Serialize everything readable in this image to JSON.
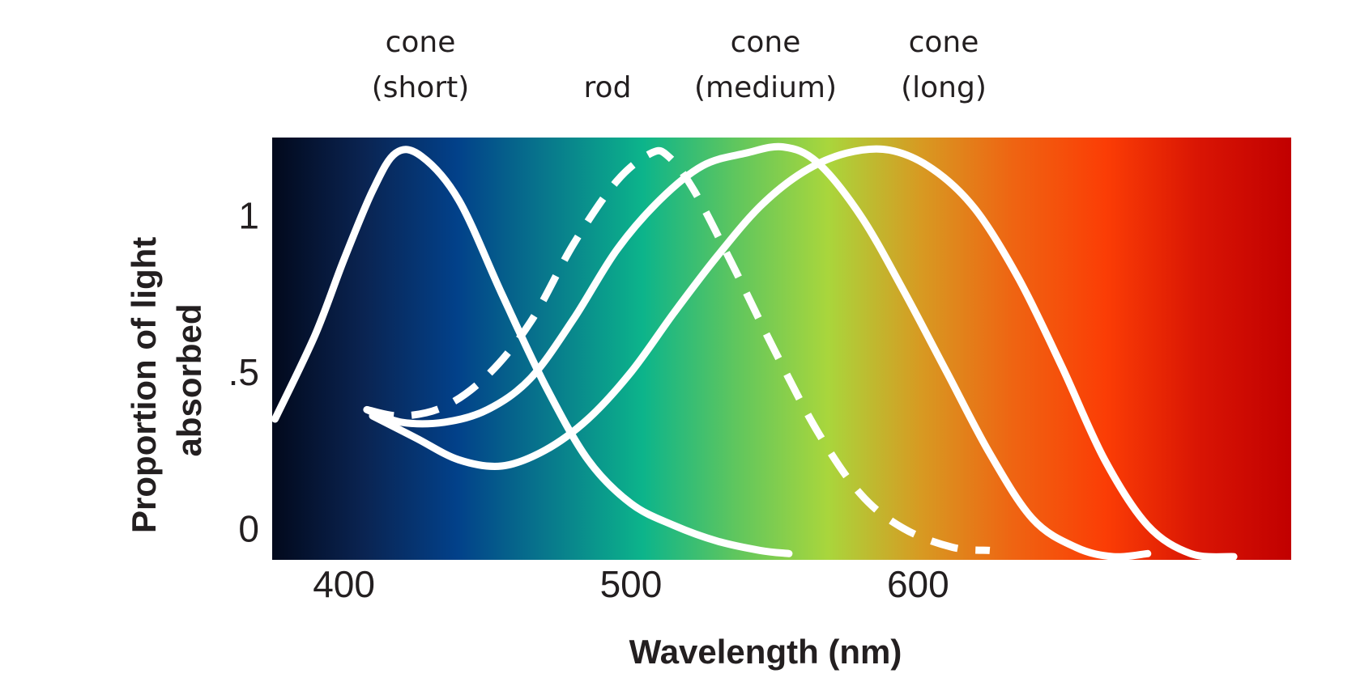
{
  "chart_data": {
    "type": "line",
    "title": "",
    "xlabel": "Wavelength (nm)",
    "ylabel_lines": [
      "Proportion of light",
      "absorbed"
    ],
    "xlim": [
      375,
      730
    ],
    "ylim": [
      -0.1,
      1.25
    ],
    "x_ticks": [
      {
        "value": 400,
        "label": "400"
      },
      {
        "value": 500,
        "label": "500"
      },
      {
        "value": 600,
        "label": "600"
      }
    ],
    "y_ticks": [
      {
        "value": 0,
        "label": "0"
      },
      {
        "value": 0.5,
        "label": ".5"
      },
      {
        "value": 1,
        "label": "1"
      }
    ],
    "grid": false,
    "legend": "none",
    "background": "visible-spectrum gradient",
    "colors": {
      "curve": "#ffffff",
      "text": "#231f20",
      "spectrum": [
        "#02091c",
        "#0a2452",
        "#02418a",
        "#087a8c",
        "#0cb48b",
        "#5fc65e",
        "#a9d63c",
        "#d79a22",
        "#ef6412",
        "#fb3d05",
        "#d91504",
        "#c10000"
      ]
    },
    "series": [
      {
        "label_lines": [
          "cone",
          "(short)"
        ],
        "style": "solid",
        "x": [
          376,
          390,
          400,
          410,
          418,
          427,
          440,
          455,
          470,
          485,
          500,
          515,
          530,
          545,
          555
        ],
        "y": [
          0.35,
          0.62,
          0.86,
          1.08,
          1.2,
          1.19,
          1.05,
          0.75,
          0.46,
          0.22,
          0.08,
          0.01,
          -0.04,
          -0.07,
          -0.08
        ]
      },
      {
        "label_lines": [
          "rod"
        ],
        "style": "dashed",
        "x": [
          408,
          420,
          435,
          450,
          465,
          480,
          495,
          507,
          513,
          522,
          535,
          550,
          565,
          580,
          595,
          612,
          625
        ],
        "y": [
          0.38,
          0.36,
          0.39,
          0.49,
          0.66,
          0.91,
          1.11,
          1.2,
          1.19,
          1.08,
          0.85,
          0.57,
          0.31,
          0.11,
          0.0,
          -0.06,
          -0.07
        ]
      },
      {
        "label_lines": [
          "cone",
          "(medium)"
        ],
        "style": "solid",
        "x": [
          408,
          420,
          435,
          450,
          465,
          480,
          495,
          510,
          525,
          540,
          553,
          565,
          580,
          595,
          610,
          625,
          640,
          655,
          668,
          680
        ],
        "y": [
          0.38,
          0.34,
          0.34,
          0.38,
          0.48,
          0.67,
          0.89,
          1.05,
          1.16,
          1.2,
          1.22,
          1.17,
          1.0,
          0.76,
          0.5,
          0.24,
          0.03,
          -0.06,
          -0.09,
          -0.08
        ]
      },
      {
        "label_lines": [
          "cone",
          "(long)"
        ],
        "style": "solid",
        "x": [
          410,
          425,
          440,
          455,
          470,
          485,
          500,
          515,
          530,
          545,
          560,
          575,
          590,
          605,
          620,
          635,
          650,
          665,
          680,
          695,
          710
        ],
        "y": [
          0.36,
          0.29,
          0.22,
          0.2,
          0.25,
          0.35,
          0.5,
          0.69,
          0.87,
          1.03,
          1.14,
          1.2,
          1.21,
          1.15,
          1.02,
          0.8,
          0.52,
          0.22,
          0.01,
          -0.08,
          -0.09
        ]
      }
    ]
  }
}
